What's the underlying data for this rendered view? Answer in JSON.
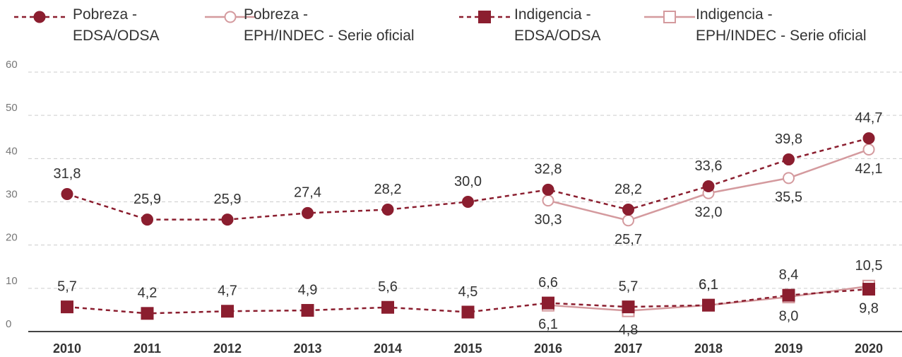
{
  "chart_data": {
    "type": "line",
    "categories": [
      "2010",
      "2011",
      "2012",
      "2013",
      "2014",
      "2015",
      "2016",
      "2017",
      "2018",
      "2019",
      "2020"
    ],
    "series": [
      {
        "name": "Pobreza -\nEDSA/ODSA",
        "color": "#8b1e2f",
        "dashed": true,
        "marker": "circle",
        "filled": true,
        "values": [
          31.8,
          25.9,
          25.9,
          27.4,
          28.2,
          30.0,
          32.8,
          28.2,
          33.6,
          39.8,
          44.7
        ],
        "value_labels": [
          "31,8",
          "25,9",
          "25,9",
          "27,4",
          "28,2",
          "30,0",
          "32,8",
          "28,2",
          "33,6",
          "39,8",
          "44,7"
        ]
      },
      {
        "name": "Pobreza -\nEPH/INDEC - Serie oficial",
        "color": "#d49a9e",
        "dashed": false,
        "marker": "circle",
        "filled": false,
        "values": [
          null,
          null,
          null,
          null,
          null,
          null,
          30.3,
          25.7,
          32.0,
          35.5,
          42.1
        ],
        "value_labels": [
          null,
          null,
          null,
          null,
          null,
          null,
          "30,3",
          "25,7",
          "32,0",
          "35,5",
          "42,1"
        ]
      },
      {
        "name": "Indigencia -\nEDSA/ODSA",
        "color": "#8b1e2f",
        "dashed": true,
        "marker": "square",
        "filled": true,
        "values": [
          5.7,
          4.2,
          4.7,
          4.9,
          5.6,
          4.5,
          6.6,
          5.7,
          6.1,
          8.4,
          9.8
        ],
        "value_labels": [
          "5,7",
          "4,2",
          "4,7",
          "4,9",
          "5,6",
          "4,5",
          "6,6",
          "5,7",
          "6,1",
          "8,4",
          "9,8"
        ]
      },
      {
        "name": "Indigencia -\nEPH/INDEC - Serie oficial",
        "color": "#d49a9e",
        "dashed": false,
        "marker": "square",
        "filled": false,
        "values": [
          null,
          null,
          null,
          null,
          null,
          null,
          6.1,
          4.8,
          6.1,
          8.0,
          10.5
        ],
        "value_labels": [
          null,
          null,
          null,
          null,
          null,
          null,
          "6,1",
          "4,8",
          "6,1",
          "8,0",
          "10,5"
        ]
      }
    ],
    "ylim": [
      0,
      60
    ],
    "yticks": [
      0,
      10,
      20,
      30,
      40,
      50,
      60
    ],
    "grid": true,
    "legend": "top"
  }
}
